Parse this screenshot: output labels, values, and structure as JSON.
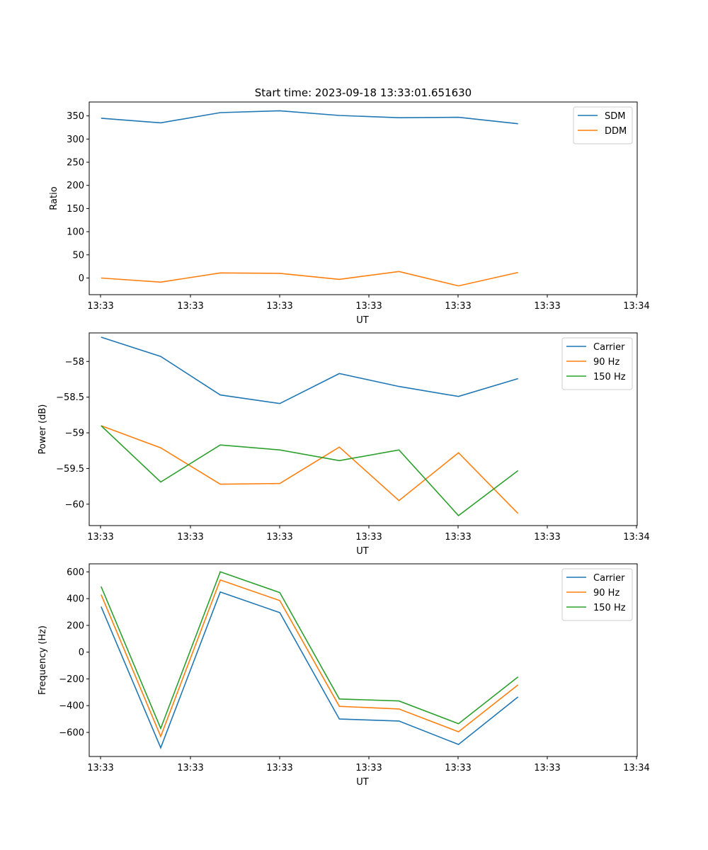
{
  "title": "Start time: 2023-09-18 13:33:01.651630",
  "colors": {
    "blue": "#1f77b4",
    "orange": "#ff7f0e",
    "green": "#2ca02c"
  },
  "chart_data": [
    {
      "type": "line",
      "ylabel": "Ratio",
      "xlabel": "UT",
      "x_tick_labels": [
        "13:33",
        "13:33",
        "13:33",
        "13:33",
        "13:33",
        "13:33",
        "13:34"
      ],
      "xlim": [
        -0.2,
        9
      ],
      "ylim": [
        -36,
        380
      ],
      "y_ticks": [
        0,
        50,
        100,
        150,
        200,
        250,
        300,
        350
      ],
      "legend_position": "top-right",
      "series": [
        {
          "name": "SDM",
          "color": "blue",
          "x": [
            0,
            1,
            2,
            3,
            4,
            5,
            6,
            7
          ],
          "values": [
            345,
            335,
            357,
            361,
            351,
            346,
            347,
            333
          ]
        },
        {
          "name": "DDM",
          "color": "orange",
          "x": [
            0,
            1,
            2,
            3,
            4,
            5,
            6,
            7
          ],
          "values": [
            0,
            -9,
            11,
            10,
            -3,
            14,
            -17,
            12
          ]
        }
      ]
    },
    {
      "type": "line",
      "ylabel": "Power (dB)",
      "xlabel": "UT",
      "x_tick_labels": [
        "13:33",
        "13:33",
        "13:33",
        "13:33",
        "13:33",
        "13:33",
        "13:34"
      ],
      "xlim": [
        -0.2,
        9
      ],
      "ylim": [
        -60.3,
        -57.6
      ],
      "y_ticks": [
        -60.0,
        -59.5,
        -59.0,
        -58.5,
        -58.0
      ],
      "legend_position": "top-right",
      "series": [
        {
          "name": "Carrier",
          "color": "blue",
          "x": [
            0,
            1,
            2,
            3,
            4,
            5,
            6,
            7
          ],
          "values": [
            -57.66,
            -57.93,
            -58.47,
            -58.59,
            -58.17,
            -58.35,
            -58.49,
            -58.24
          ]
        },
        {
          "name": "90 Hz",
          "color": "orange",
          "x": [
            0,
            1,
            2,
            3,
            4,
            5,
            6,
            7
          ],
          "values": [
            -58.9,
            -59.21,
            -59.72,
            -59.71,
            -59.2,
            -59.95,
            -59.28,
            -60.13
          ]
        },
        {
          "name": "150 Hz",
          "color": "green",
          "x": [
            0,
            1,
            2,
            3,
            4,
            5,
            6,
            7
          ],
          "values": [
            -58.9,
            -59.69,
            -59.17,
            -59.24,
            -59.39,
            -59.24,
            -60.16,
            -59.53
          ]
        }
      ]
    },
    {
      "type": "line",
      "ylabel": "Frequency (Hz)",
      "xlabel": "UT",
      "x_tick_labels": [
        "13:33",
        "13:33",
        "13:33",
        "13:33",
        "13:33",
        "13:33",
        "13:34"
      ],
      "xlim": [
        -0.2,
        9
      ],
      "ylim": [
        -780,
        660
      ],
      "y_ticks": [
        -600,
        -400,
        -200,
        0,
        200,
        400,
        600
      ],
      "legend_position": "top-right",
      "series": [
        {
          "name": "Carrier",
          "color": "blue",
          "x": [
            0,
            1,
            2,
            3,
            4,
            5,
            6,
            7
          ],
          "values": [
            340,
            -715,
            450,
            295,
            -500,
            -515,
            -690,
            -335
          ]
        },
        {
          "name": "90 Hz",
          "color": "orange",
          "x": [
            0,
            1,
            2,
            3,
            4,
            5,
            6,
            7
          ],
          "values": [
            430,
            -630,
            540,
            385,
            -405,
            -425,
            -595,
            -245
          ]
        },
        {
          "name": "150 Hz",
          "color": "green",
          "x": [
            0,
            1,
            2,
            3,
            4,
            5,
            6,
            7
          ],
          "values": [
            490,
            -570,
            600,
            445,
            -350,
            -365,
            -535,
            -185
          ]
        }
      ]
    }
  ]
}
